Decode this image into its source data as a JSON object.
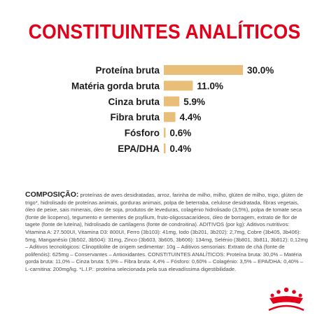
{
  "title": "CONSTITUINTES ANALÍTICOS",
  "chart_data": {
    "type": "bar",
    "orientation": "horizontal",
    "categories": [
      "Proteína bruta",
      "Matéria gorda bruta",
      "Cinza bruta",
      "Fibra bruta",
      "Fósforo",
      "EPA/DHA"
    ],
    "values": [
      30.0,
      11.0,
      5.9,
      4.4,
      0.6,
      0.4
    ],
    "value_labels": [
      "30.0%",
      "11.0%",
      "5.9%",
      "4.4%",
      "0.6%",
      "0.4%"
    ],
    "bar_color": "#e8be78",
    "xlim": [
      0,
      30
    ],
    "grid": false
  },
  "composition": {
    "heading": "COMPOSIÇÃO:",
    "text": " proteínas de aves desidratadas, arroz, farinha de milho, milho, glúten de milho, trigo, glúten de trigo*, hidrolisado de proteínas animais, gorduras animais, polpa de beterraba, celulose desidratada, fibras vegetais, óleo de peixe, sais minerais, óleo de soja, produtos de leveduras, colagénio hidrolisado (3,5%), polpa de tomate seca (fonte de licopeno), tegumento e sementes de psyllium, fruto-oligossacarídeos, óleo de borragem, extrato de flor de tagete (fonte de luteína), hidrolisado de cartilagens (fonte de condroitina). ADITIVOS (por kg): Aditivos nutritivos: Vitamina A: 27.500UI, Vitamina D3: 800UI, Ferro (3b103): 41mg, Iodo (3b201, 3b202): 2,7mg, Cobre (3b405, 3b406): 5mg, Manganésio (3b502, 3b504): 31mg, Zinco (3b603, 3b605, 3b606): 134mg, Selénio (3b801, 3b811, 3b812): 0,12mg – Aditivos tecnológicos: Clinoptilolite de origem sedimentar: 10g – Aditivos sensoriais: Extrato de chá (fonte de polifenóis): 625mg – Conservantes – Antioxidantes. CONSTITUINTES ANALÍTICOS: Proteína bruta: 30,0% – Matéria gorda bruta: 11,0% – Cinza bruta: 5,9% – Fibra bruta: 4,4% – Fósforo: 0,60% – Colagénio: 3,5% – EPA/DHA: 0,40% – L-carnitina: 200mg/kg. *L.I.P.: proteína selecionada pela sua elevadíssima digestibilidade."
  },
  "brand": {
    "logo_icon": "royal-canin-crown-logo",
    "brand_color": "#e2001a"
  }
}
